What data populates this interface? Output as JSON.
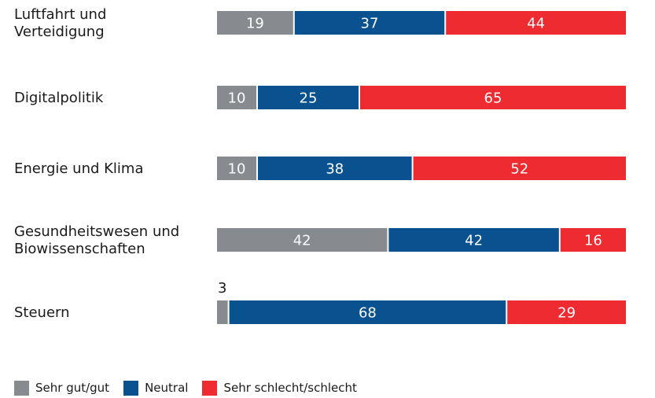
{
  "chart_data": {
    "type": "bar",
    "orientation": "horizontal",
    "stacked": true,
    "categories": [
      [
        "Luftfahrt und",
        "Verteidigung"
      ],
      [
        "Digitalpolitik"
      ],
      [
        "Energie und Klima"
      ],
      [
        "Gesundheitswesen und",
        "Biowissenschaften"
      ],
      [
        "Steuern"
      ]
    ],
    "series": [
      {
        "name": "Sehr gut/gut",
        "color": "#878a8f",
        "values": [
          19,
          10,
          10,
          42,
          3
        ]
      },
      {
        "name": "Neutral",
        "color": "#0a5190",
        "values": [
          37,
          25,
          38,
          42,
          68
        ]
      },
      {
        "name": "Sehr schlecht/schlecht",
        "color": "#ee2b31",
        "values": [
          44,
          65,
          52,
          16,
          29
        ]
      }
    ],
    "xlim": [
      0,
      100
    ],
    "grid": false,
    "legend": "bottom-left"
  }
}
